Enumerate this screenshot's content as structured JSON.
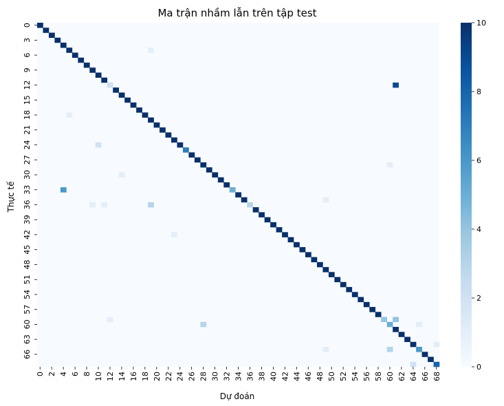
{
  "chart_data": {
    "type": "heatmap",
    "title": "Ma trận nhầm lẫn trên tập test",
    "xlabel": "Dự đoán",
    "ylabel": "Thực tế",
    "n_classes": 69,
    "x_tick_labels": [
      "0",
      "2",
      "4",
      "6",
      "8",
      "10",
      "12",
      "14",
      "16",
      "18",
      "20",
      "22",
      "24",
      "26",
      "28",
      "30",
      "32",
      "34",
      "36",
      "38",
      "40",
      "42",
      "44",
      "46",
      "48",
      "50",
      "52",
      "54",
      "56",
      "58",
      "60",
      "62",
      "64",
      "66",
      "68"
    ],
    "y_tick_labels": [
      "0",
      "3",
      "6",
      "9",
      "12",
      "15",
      "18",
      "21",
      "24",
      "27",
      "30",
      "33",
      "36",
      "39",
      "42",
      "45",
      "48",
      "51",
      "54",
      "57",
      "60",
      "63",
      "66"
    ],
    "colorbar": {
      "min": 0,
      "max": 10,
      "ticks": [
        "0",
        "2",
        "4",
        "6",
        "8",
        "10"
      ],
      "colormap": "Blues"
    },
    "diagonal_value": 10,
    "diagonal_exceptions": [
      {
        "row": 12,
        "value": 2
      },
      {
        "row": 25,
        "value": 7
      },
      {
        "row": 33,
        "value": 5
      },
      {
        "row": 36,
        "value": 3
      },
      {
        "row": 59,
        "value": 4
      },
      {
        "row": 60,
        "value": 5
      },
      {
        "row": 65,
        "value": 6
      },
      {
        "row": 68,
        "value": 8
      }
    ],
    "off_diagonal": [
      {
        "row": 5,
        "col": 19,
        "value": 1
      },
      {
        "row": 12,
        "col": 61,
        "value": 9
      },
      {
        "row": 18,
        "col": 5,
        "value": 1
      },
      {
        "row": 24,
        "col": 10,
        "value": 2
      },
      {
        "row": 28,
        "col": 60,
        "value": 1
      },
      {
        "row": 30,
        "col": 14,
        "value": 1
      },
      {
        "row": 33,
        "col": 4,
        "value": 6
      },
      {
        "row": 35,
        "col": 49,
        "value": 1
      },
      {
        "row": 36,
        "col": 9,
        "value": 1
      },
      {
        "row": 36,
        "col": 11,
        "value": 1
      },
      {
        "row": 36,
        "col": 19,
        "value": 3
      },
      {
        "row": 42,
        "col": 23,
        "value": 1
      },
      {
        "row": 59,
        "col": 12,
        "value": 1
      },
      {
        "row": 59,
        "col": 61,
        "value": 4
      },
      {
        "row": 60,
        "col": 28,
        "value": 3
      },
      {
        "row": 60,
        "col": 65,
        "value": 1
      },
      {
        "row": 64,
        "col": 68,
        "value": 1
      },
      {
        "row": 65,
        "col": 49,
        "value": 1
      },
      {
        "row": 65,
        "col": 60,
        "value": 3
      },
      {
        "row": 68,
        "col": 64,
        "value": 2
      }
    ]
  }
}
